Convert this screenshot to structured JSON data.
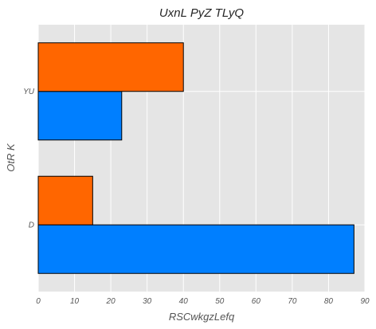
{
  "chart_data": {
    "type": "bar",
    "orientation": "horizontal",
    "title": "UxnL PyZ TLyQ",
    "xlabel": "RSCwkgzLefq",
    "ylabel": "OtR K",
    "categories": [
      "D",
      "YU"
    ],
    "series": [
      {
        "values": [
          87,
          23
        ],
        "color": "#007fff"
      },
      {
        "values": [
          15,
          40
        ],
        "color": "#ff6600"
      }
    ],
    "xlim": [
      0,
      90
    ],
    "xticks": [
      0,
      10,
      20,
      30,
      40,
      50,
      60,
      70,
      80,
      90
    ],
    "grid": true,
    "legend": "none",
    "background_color": "#e5e5e5",
    "grid_color": "#ffffff"
  }
}
